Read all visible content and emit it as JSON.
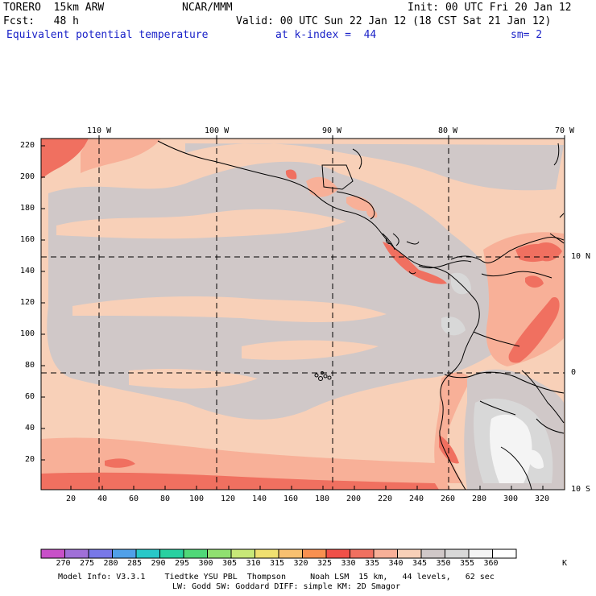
{
  "header": {
    "model": "TORERO  15km ARW",
    "center": "NCAR/MMM",
    "init": "Init: 00 UTC Fri 20 Jan 12",
    "fcst": "Fcst:   48 h",
    "valid": "Valid: 00 UTC Sun 22 Jan 12 (18 CST Sat 21 Jan 12)",
    "field": "Equivalent potential temperature",
    "level": "at k-index =  44",
    "smoothing": "sm= 2"
  },
  "map": {
    "top_lon_labels": [
      "110 W",
      "100 W",
      "90 W",
      "80 W",
      "70 W"
    ],
    "right_lat_labels": [
      "10 N",
      "0",
      "10 S"
    ],
    "left_grid_labels": [
      "220",
      "200",
      "180",
      "160",
      "140",
      "120",
      "100",
      "80",
      "60",
      "40",
      "20"
    ],
    "bottom_grid_labels": [
      "20",
      "40",
      "60",
      "80",
      "100",
      "120",
      "140",
      "160",
      "180",
      "200",
      "220",
      "240",
      "260",
      "280",
      "300",
      "320"
    ]
  },
  "colorbar": {
    "labels": [
      "270",
      "275",
      "280",
      "285",
      "290",
      "295",
      "300",
      "305",
      "310",
      "315",
      "320",
      "325",
      "330",
      "335",
      "340",
      "345",
      "350",
      "355",
      "360"
    ],
    "unit": "K",
    "colors": [
      "#c850c8",
      "#a070d8",
      "#7878e8",
      "#50a0e8",
      "#28c8c8",
      "#28d0a0",
      "#50d878",
      "#90e070",
      "#c8e878",
      "#f0e070",
      "#f8c070",
      "#f89050",
      "#f05048",
      "#f07060",
      "#f8b098",
      "#f8d0b8",
      "#d0c8c8",
      "#d8d8d8",
      "#f4f4f4",
      "#ffffff"
    ]
  },
  "footer": {
    "line1": "Model Info: V3.3.1    Tiedtke YSU PBL  Thompson     Noah LSM  15 km,   44 levels,   62 sec",
    "line2": "LW: Godd SW: Goddard DIFF: simple KM: 2D Smagor"
  }
}
